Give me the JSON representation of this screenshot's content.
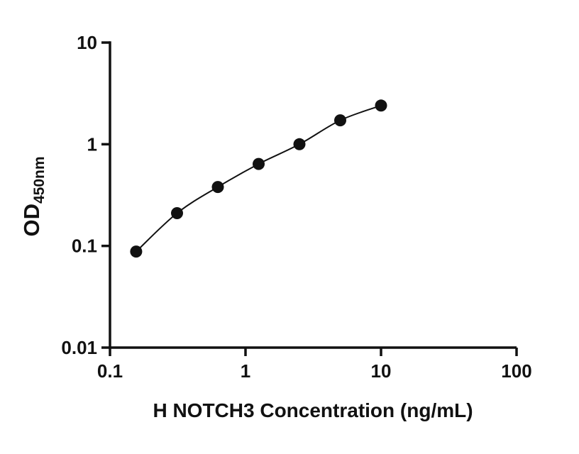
{
  "chart_data": {
    "type": "scatter",
    "title": "",
    "xlabel": "H NOTCH3 Concentration (ng/mL)",
    "ylabel": "OD",
    "ylabel_sub": "450nm",
    "x_scale": "log",
    "y_scale": "log",
    "xlim": [
      0.1,
      100
    ],
    "ylim": [
      0.01,
      10
    ],
    "x_ticks": [
      0.1,
      1,
      10,
      100
    ],
    "x_tick_labels": [
      "0.1",
      "1",
      "10",
      "100"
    ],
    "y_ticks": [
      0.01,
      0.1,
      1,
      10
    ],
    "y_tick_labels": [
      "0.01",
      "0.1",
      "1",
      "10"
    ],
    "grid": false,
    "legend": false,
    "marker_color": "#111111",
    "line_color": "#111111",
    "axis_color": "#111111",
    "series": [
      {
        "name": "standard-curve",
        "x": [
          0.156,
          0.3125,
          0.625,
          1.25,
          2.5,
          5,
          10
        ],
        "y": [
          0.088,
          0.21,
          0.38,
          0.64,
          1.0,
          1.72,
          2.4
        ]
      }
    ]
  }
}
